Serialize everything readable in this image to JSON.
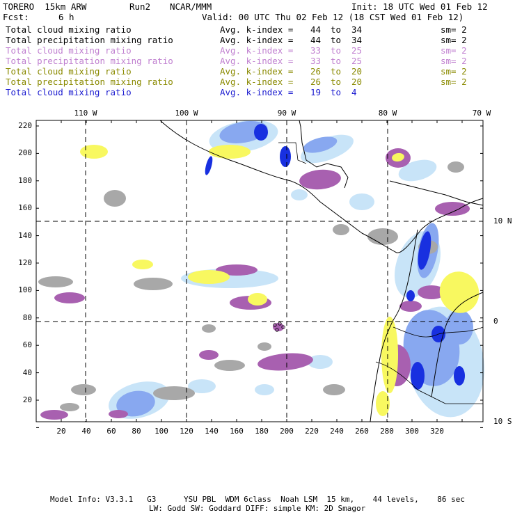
{
  "header": {
    "model": "TORERO  15km ARW",
    "run": "Run2",
    "org": "NCAR/MMM",
    "init": "Init: 18 UTC Wed 01 Feb 12",
    "fcst_label": "Fcst:",
    "fcst_value": "6 h",
    "valid": "Valid: 00 UTC Thu 02 Feb 12 (18 CST Wed 01 Feb 12)"
  },
  "legend": [
    {
      "name": "Total cloud mixing ratio",
      "kidx": "Avg. k-index =",
      "from": "44",
      "to_word": "to",
      "to": "34",
      "sm": "sm= 2",
      "color": "#000000"
    },
    {
      "name": "Total precipitation mixing ratio",
      "kidx": "Avg. k-index =",
      "from": "44",
      "to_word": "to",
      "to": "34",
      "sm": "sm= 2",
      "color": "#000000"
    },
    {
      "name": "Total cloud mixing ratio",
      "kidx": "Avg. k-index =",
      "from": "33",
      "to_word": "to",
      "to": "25",
      "sm": "sm= 2",
      "color": "#c080d0"
    },
    {
      "name": "Total precipitation mixing ratio",
      "kidx": "Avg. k-index =",
      "from": "33",
      "to_word": "to",
      "to": "25",
      "sm": "sm= 2",
      "color": "#c080d0"
    },
    {
      "name": "Total cloud mixing ratio",
      "kidx": "Avg. k-index =",
      "from": "26",
      "to_word": "to",
      "to": "20",
      "sm": "sm= 2",
      "color": "#8a8a00"
    },
    {
      "name": "Total precipitation mixing ratio",
      "kidx": "Avg. k-index =",
      "from": "26",
      "to_word": "to",
      "to": "20",
      "sm": "sm= 2",
      "color": "#8a8a00"
    },
    {
      "name": "Total cloud mixing ratio",
      "kidx": "Avg. k-index =",
      "from": "19",
      "to_word": "to",
      "to": "4",
      "sm": "",
      "color": "#1a1ad0"
    }
  ],
  "map": {
    "lon_labels": [
      "110 W",
      "100 W",
      "90 W",
      "80 W",
      "70 W"
    ],
    "lat_labels": [
      "10 N",
      "0",
      "10 S"
    ],
    "x_ticks": [
      "20",
      "40",
      "60",
      "80",
      "100",
      "120",
      "140",
      "160",
      "180",
      "200",
      "220",
      "240",
      "260",
      "280",
      "300",
      "320"
    ],
    "y_ticks": [
      "220",
      "200",
      "180",
      "160",
      "140",
      "120",
      "100",
      "80",
      "60",
      "40",
      "20"
    ],
    "colors": {
      "gray": "#a8a8a8",
      "purple": "#a860b0",
      "yellow": "#f8f860",
      "lightblue": "#c8e4f8",
      "midblue": "#88a8f0",
      "blue": "#1830e0"
    }
  },
  "footer": {
    "line1": "Model Info: V3.3.1   G3      YSU PBL  WDM 6class  Noah LSM  15 km,    44 levels,    86 sec",
    "line2": "LW: Godd SW: Goddard DIFF: simple KM: 2D Smagor"
  }
}
